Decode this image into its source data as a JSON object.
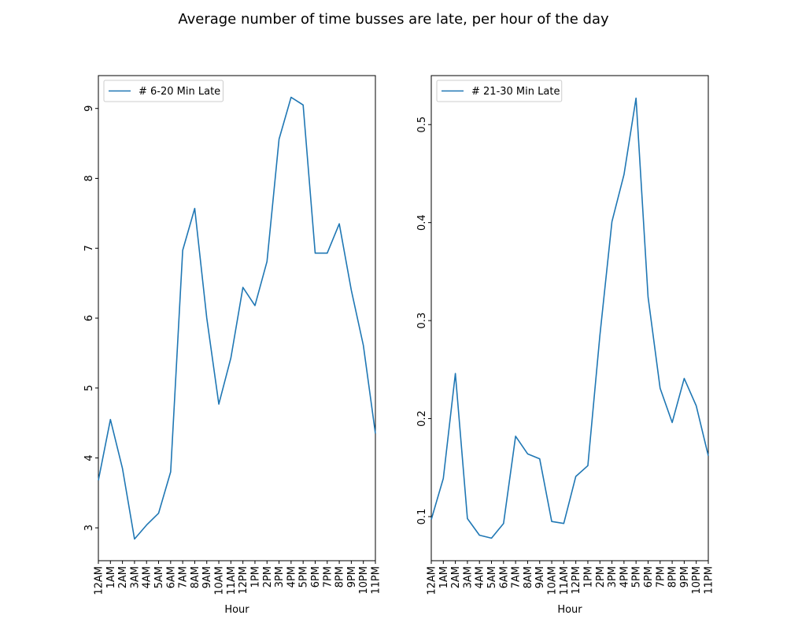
{
  "figure": {
    "title": "Average number of time busses are late, per hour of the day"
  },
  "chart_data": [
    {
      "type": "line",
      "title": "",
      "xlabel": "Hour",
      "ylabel": "",
      "categories": [
        "12AM",
        "1AM",
        "2AM",
        "3AM",
        "4AM",
        "5AM",
        "6AM",
        "7AM",
        "8AM",
        "9AM",
        "10AM",
        "11AM",
        "12PM",
        "1PM",
        "2PM",
        "3PM",
        "4PM",
        "5PM",
        "6PM",
        "7PM",
        "8PM",
        "9PM",
        "10PM",
        "11PM"
      ],
      "series": [
        {
          "name": "# 6-20 Min Late",
          "color": "#1f77b4",
          "values": [
            3.68,
            4.55,
            3.85,
            2.84,
            3.04,
            3.21,
            3.8,
            6.97,
            7.57,
            6.0,
            4.77,
            5.43,
            6.44,
            6.18,
            6.81,
            8.56,
            9.16,
            9.05,
            6.93,
            6.93,
            7.35,
            6.4,
            5.61,
            4.35
          ]
        }
      ],
      "ylim": [
        2.53,
        9.47
      ],
      "yticks": [
        3,
        4,
        5,
        6,
        7,
        8,
        9
      ],
      "ytick_labels": [
        "3",
        "4",
        "5",
        "6",
        "7",
        "8",
        "9"
      ],
      "grid": false,
      "legend": "upper-left"
    },
    {
      "type": "line",
      "title": "",
      "xlabel": "Hour",
      "ylabel": "",
      "categories": [
        "12AM",
        "1AM",
        "2AM",
        "3AM",
        "4AM",
        "5AM",
        "6AM",
        "7AM",
        "8AM",
        "9AM",
        "10AM",
        "11AM",
        "12PM",
        "1PM",
        "2PM",
        "3PM",
        "4PM",
        "5PM",
        "6PM",
        "7PM",
        "8PM",
        "9PM",
        "10PM",
        "11PM"
      ],
      "series": [
        {
          "name": "# 21-30 Min Late",
          "color": "#1f77b4",
          "values": [
            0.097,
            0.139,
            0.246,
            0.098,
            0.081,
            0.078,
            0.093,
            0.182,
            0.164,
            0.159,
            0.095,
            0.093,
            0.141,
            0.152,
            0.285,
            0.401,
            0.449,
            0.527,
            0.324,
            0.231,
            0.196,
            0.241,
            0.213,
            0.162
          ]
        }
      ],
      "ylim": [
        0.055,
        0.55
      ],
      "yticks": [
        0.1,
        0.2,
        0.3,
        0.4,
        0.5
      ],
      "ytick_labels": [
        "0.1",
        "0.2",
        "0.3",
        "0.4",
        "0.5"
      ],
      "grid": false,
      "legend": "upper-left"
    }
  ]
}
